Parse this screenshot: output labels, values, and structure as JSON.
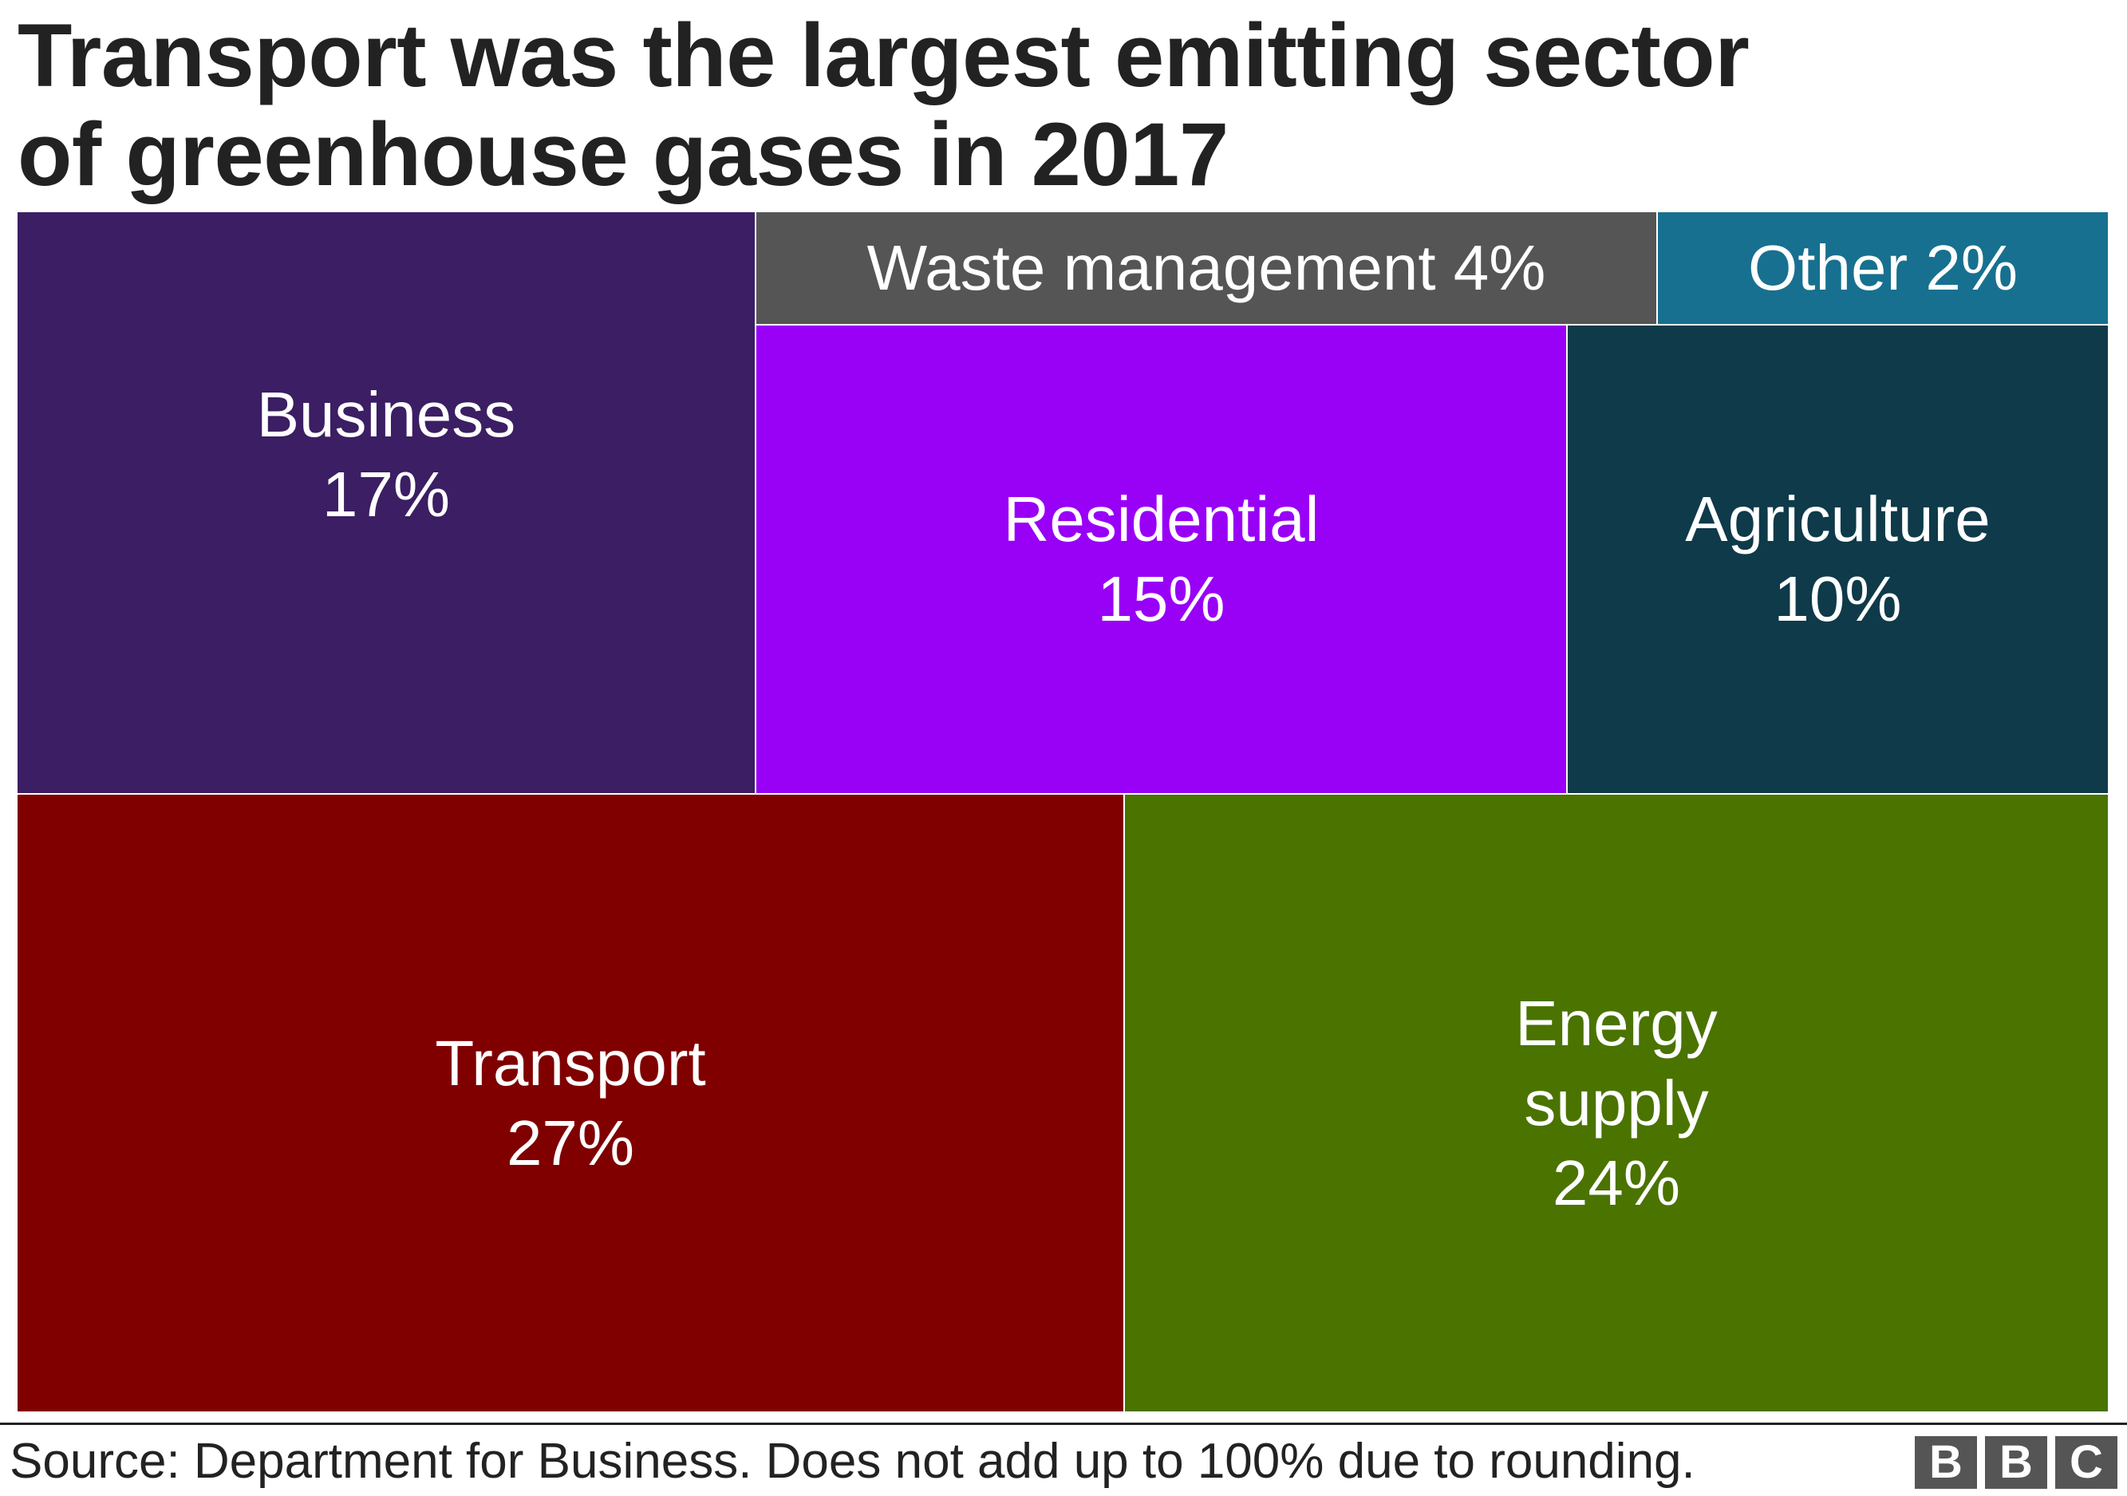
{
  "header": {
    "title_line1": "Transport was the largest emitting sector",
    "title_line2": "of greenhouse gases in 2017"
  },
  "chart_data": {
    "type": "treemap",
    "title": "Transport was the largest emitting sector of greenhouse gases in 2017",
    "unit": "%",
    "items": [
      {
        "name": "Transport",
        "label_lines": [
          "Transport",
          "27%"
        ],
        "value": 27,
        "color": "#800000"
      },
      {
        "name": "Energy supply",
        "label_lines": [
          "Energy",
          "supply",
          "24%"
        ],
        "value": 24,
        "color": "#4a7300"
      },
      {
        "name": "Business",
        "label_lines": [
          "Business",
          "17%"
        ],
        "value": 17,
        "color": "#3b1e63"
      },
      {
        "name": "Residential",
        "label_lines": [
          "Residential",
          "15%"
        ],
        "value": 15,
        "color": "#9900f6"
      },
      {
        "name": "Agriculture",
        "label_lines": [
          "Agriculture",
          "10%"
        ],
        "value": 10,
        "color": "#0e3a4a"
      },
      {
        "name": "Waste management",
        "label_lines": [
          "Waste management 4%"
        ],
        "value": 4,
        "color": "#555555"
      },
      {
        "name": "Other",
        "label_lines": [
          "Other 2%"
        ],
        "value": 2,
        "color": "#17708f"
      }
    ]
  },
  "footer": {
    "source": "Source: Department for Business. Does not add up to 100% due to rounding.",
    "logo_letters": [
      "B",
      "B",
      "C"
    ]
  }
}
